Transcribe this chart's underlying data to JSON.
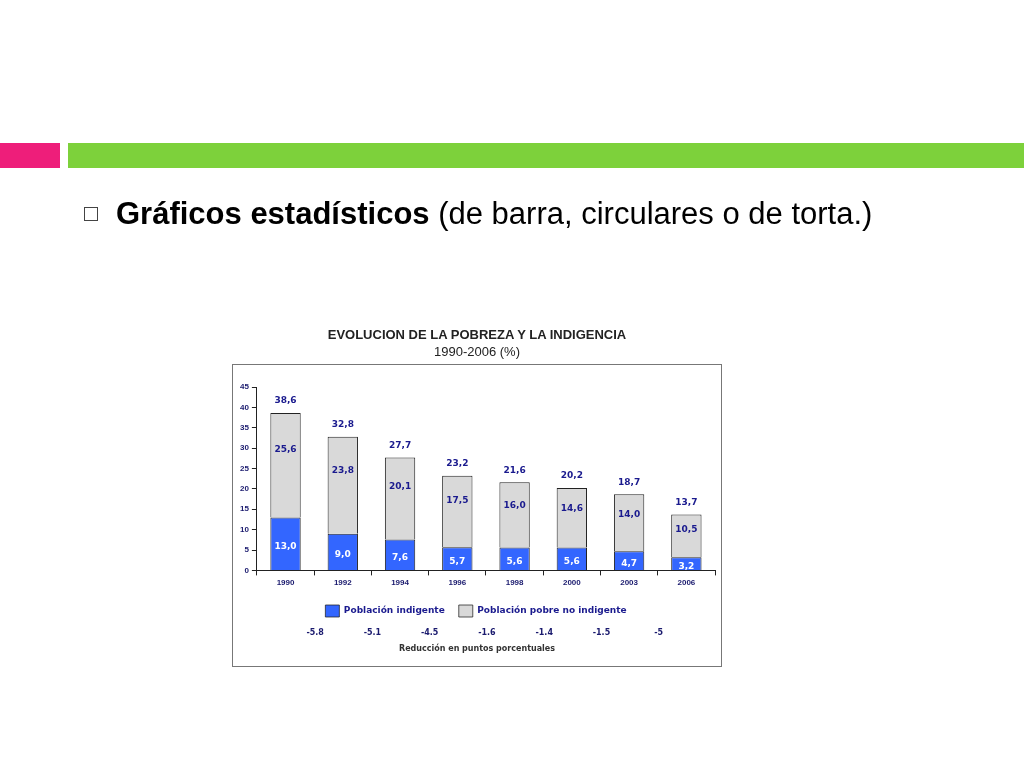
{
  "chart_data": {
    "type": "bar",
    "title": "EVOLUCION DE LA POBREZA Y LA INDIGENCIA",
    "subtitle": "1990-2006 (%)",
    "categories": [
      "1990",
      "1992",
      "1994",
      "1996",
      "1998",
      "2000",
      "2003",
      "2006"
    ],
    "stacked": true,
    "series": [
      {
        "name": "Población indigente",
        "color": "#3366ff",
        "values": [
          13.0,
          9.0,
          7.6,
          5.7,
          5.6,
          5.6,
          4.7,
          3.2
        ],
        "value_labels": [
          "13,0",
          "9,0",
          "7,6",
          "5,7",
          "5,6",
          "5,6",
          "4,7",
          "3,2"
        ]
      },
      {
        "name": "Población pobre no indigente",
        "color": "#d9d9d9",
        "values": [
          25.6,
          23.8,
          20.1,
          17.5,
          16.0,
          14.6,
          14.0,
          10.5
        ],
        "value_labels": [
          "25,6",
          "23,8",
          "20,1",
          "17,5",
          "16,0",
          "14,6",
          "14,0",
          "10,5"
        ]
      }
    ],
    "totals": [
      "38,6",
      "32,8",
      "27,7",
      "23,2",
      "21,6",
      "20,2",
      "18,7",
      "13,7"
    ],
    "ylim": [
      0,
      45
    ],
    "yticks": [
      0,
      5,
      10,
      15,
      20,
      25,
      30,
      35,
      40,
      45
    ],
    "grid": false,
    "legend": "bottom",
    "annotations": [
      "Gráficos estadísticos",
      "(de barra, circulares o de torta.)",
      "-5.8",
      "-5.1",
      "-4.5",
      "-1.6",
      "-1.4",
      "-1.5",
      "-5",
      "Reducción en puntos porcentuales"
    ]
  }
}
